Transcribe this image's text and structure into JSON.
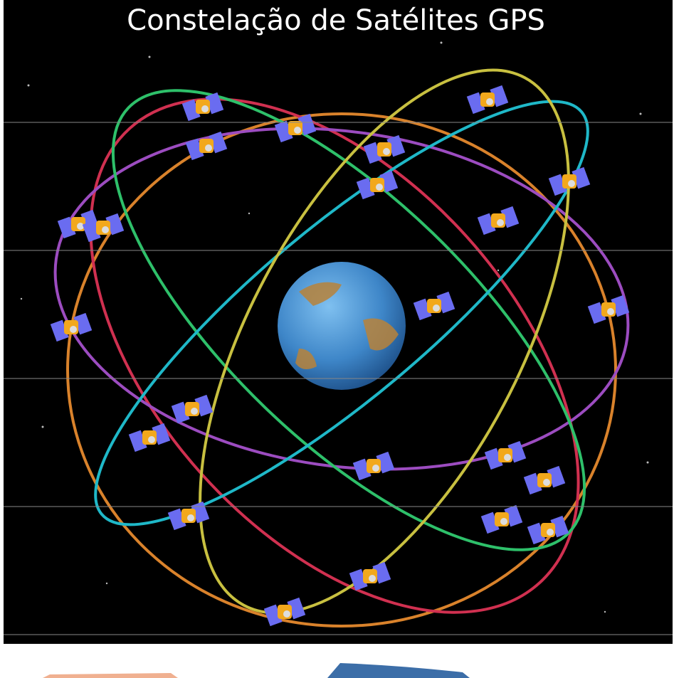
{
  "header": {
    "title": "Constelação de Satélites GPS"
  }
}
